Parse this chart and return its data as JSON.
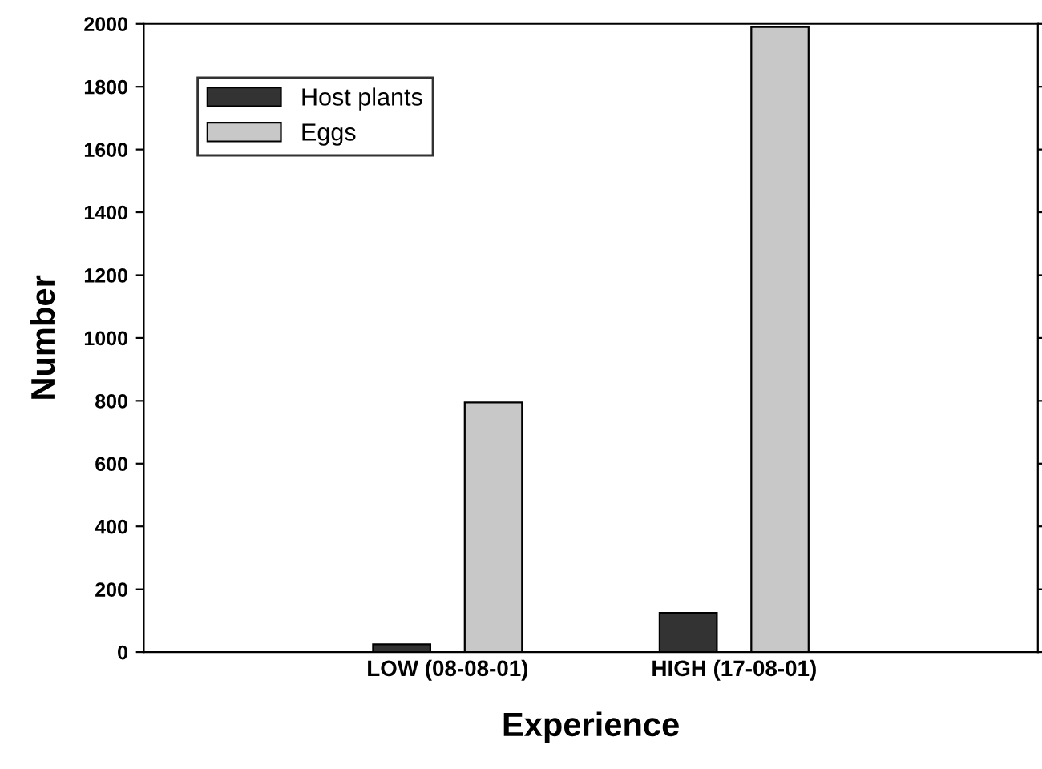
{
  "chart_data": {
    "type": "bar",
    "xlabel": "Experience",
    "ylabel": "Number",
    "categories": [
      "LOW (08-08-01)",
      "HIGH (17-08-01)"
    ],
    "series": [
      {
        "name": "Host plants",
        "color": "#333333",
        "values": [
          25,
          125
        ]
      },
      {
        "name": "Eggs",
        "color": "#c8c8c8",
        "values": [
          795,
          1990
        ]
      }
    ],
    "ylim": [
      0,
      2000
    ],
    "yticks": [
      0,
      200,
      400,
      600,
      800,
      1000,
      1200,
      1400,
      1600,
      1800,
      2000
    ],
    "grid": false,
    "legend": "top left"
  }
}
